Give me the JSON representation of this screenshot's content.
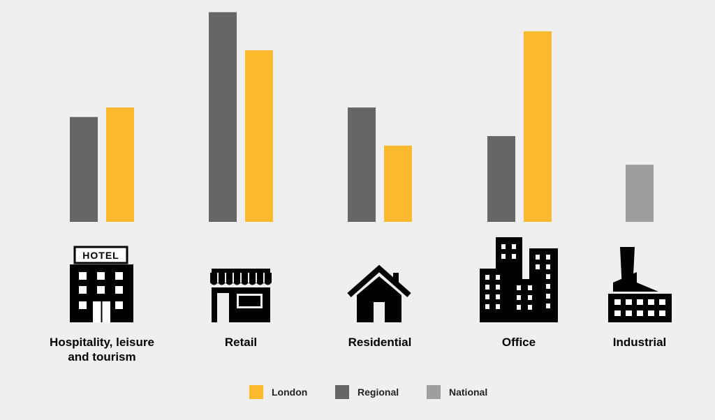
{
  "chart_data": {
    "type": "bar",
    "categories": [
      "Hospitality, leisure and tourism",
      "Retail",
      "Residential",
      "Office",
      "Industrial"
    ],
    "series": [
      {
        "name": "Regional",
        "color": "#666666",
        "values": [
          55,
          110,
          60,
          45,
          null
        ]
      },
      {
        "name": "London",
        "color": "#fbb92d",
        "values": [
          60,
          90,
          40,
          100,
          null
        ]
      },
      {
        "name": "National",
        "color": "#9e9e9e",
        "values": [
          null,
          null,
          null,
          null,
          30
        ]
      }
    ],
    "ylim": [
      0,
      112
    ],
    "axes_visible": false,
    "grid": false,
    "legend_position": "bottom",
    "category_icons": [
      "hotel-icon",
      "storefront-icon",
      "house-icon",
      "office-buildings-icon",
      "factory-icon"
    ]
  },
  "legend": [
    {
      "label": "London",
      "color": "#fbb92d"
    },
    {
      "label": "Regional",
      "color": "#666666"
    },
    {
      "label": "National",
      "color": "#9e9e9e"
    }
  ],
  "icons": {
    "hotel_sign": "HOTEL"
  }
}
